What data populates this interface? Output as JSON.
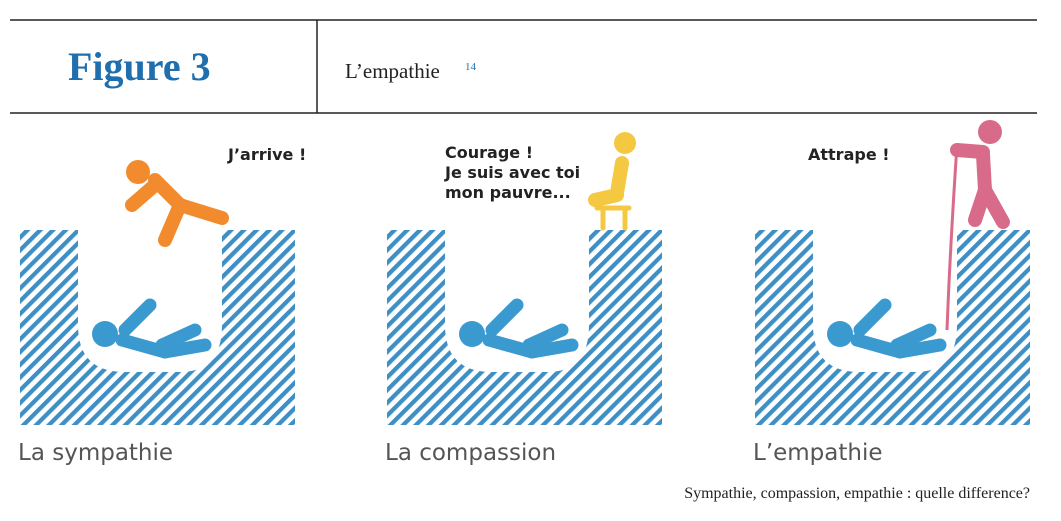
{
  "header": {
    "figure_label": "Figure 3",
    "title": "L’empathie",
    "footnote": "14"
  },
  "panels": [
    {
      "speech": [
        "J’arrive !"
      ],
      "caption": "La sympathie"
    },
    {
      "speech": [
        "Courage !",
        "Je suis avec toi",
        "mon pauvre..."
      ],
      "caption": "La compassion"
    },
    {
      "speech": [
        "Attrape !"
      ],
      "caption": "L’empathie"
    }
  ],
  "source": "Sympathie, compassion, empathie : quelle difference?"
}
